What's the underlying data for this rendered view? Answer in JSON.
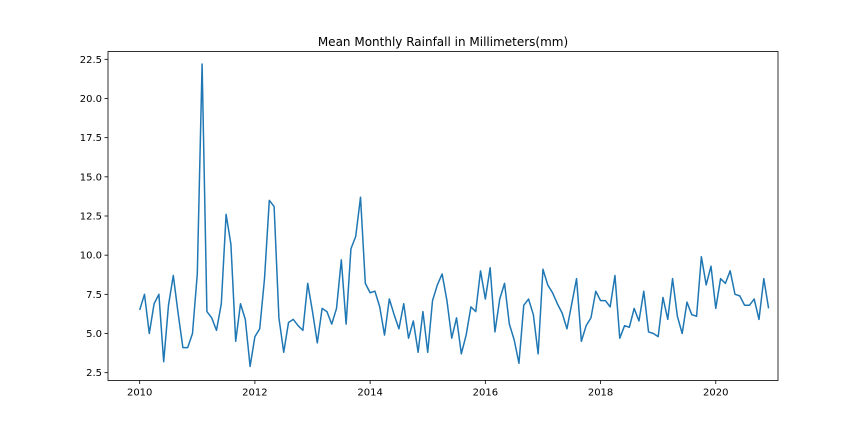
{
  "chart_data": {
    "type": "line",
    "title": "Mean Monthly Rainfall in Millimeters(mm)",
    "xlabel": "",
    "ylabel": "",
    "xlim": [
      2009.45,
      2021.08
    ],
    "ylim": [
      2.0,
      23.0
    ],
    "x_ticks": [
      2010,
      2012,
      2014,
      2016,
      2018,
      2020
    ],
    "x_tick_labels": [
      "2010",
      "2012",
      "2014",
      "2016",
      "2018",
      "2020"
    ],
    "y_ticks": [
      2.5,
      5.0,
      7.5,
      10.0,
      12.5,
      15.0,
      17.5,
      20.0,
      22.5
    ],
    "y_tick_labels": [
      "2.5",
      "5.0",
      "7.5",
      "10.0",
      "12.5",
      "15.0",
      "17.5",
      "20.0",
      "22.5"
    ],
    "grid": false,
    "legend": "none",
    "line_color": "#1f77b4",
    "series": [
      {
        "x_start": "2010-01",
        "frequency": "monthly",
        "values": [
          6.5,
          7.5,
          5.0,
          6.9,
          7.5,
          3.2,
          6.8,
          8.7,
          6.3,
          4.1,
          4.1,
          5.0,
          8.8,
          22.2,
          6.4,
          6.0,
          5.2,
          6.9,
          12.6,
          10.7,
          4.5,
          6.9,
          5.9,
          2.9,
          4.8,
          5.3,
          8.5,
          13.5,
          13.1,
          6.0,
          3.8,
          5.7,
          5.9,
          5.5,
          5.2,
          8.2,
          6.4,
          4.4,
          6.6,
          6.4,
          5.6,
          6.6,
          9.7,
          5.6,
          10.4,
          11.2,
          13.7,
          8.2,
          7.6,
          7.7,
          6.7,
          4.9,
          7.2,
          6.2,
          5.3,
          6.9,
          4.7,
          5.8,
          3.8,
          6.4,
          3.8,
          7.1,
          8.1,
          8.8,
          7.1,
          4.7,
          6.0,
          3.7,
          4.9,
          6.7,
          6.4,
          9.0,
          7.2,
          9.2,
          5.1,
          7.2,
          8.2,
          5.6,
          4.6,
          3.1,
          6.8,
          7.2,
          6.2,
          3.7,
          9.1,
          8.1,
          7.6,
          6.9,
          6.3,
          5.3,
          6.9,
          8.5,
          4.5,
          5.5,
          6.0,
          7.7,
          7.1,
          7.1,
          6.7,
          8.7,
          4.7,
          5.5,
          5.4,
          6.6,
          5.8,
          7.7,
          5.1,
          5.0,
          4.8,
          7.3,
          5.9,
          8.5,
          6.1,
          5.0,
          7.0,
          6.2,
          6.1,
          9.9,
          8.1,
          9.3,
          6.6,
          8.5,
          8.2,
          9.0,
          7.5,
          7.4,
          6.8,
          6.8,
          7.2,
          5.9,
          8.5,
          6.6
        ]
      }
    ]
  }
}
